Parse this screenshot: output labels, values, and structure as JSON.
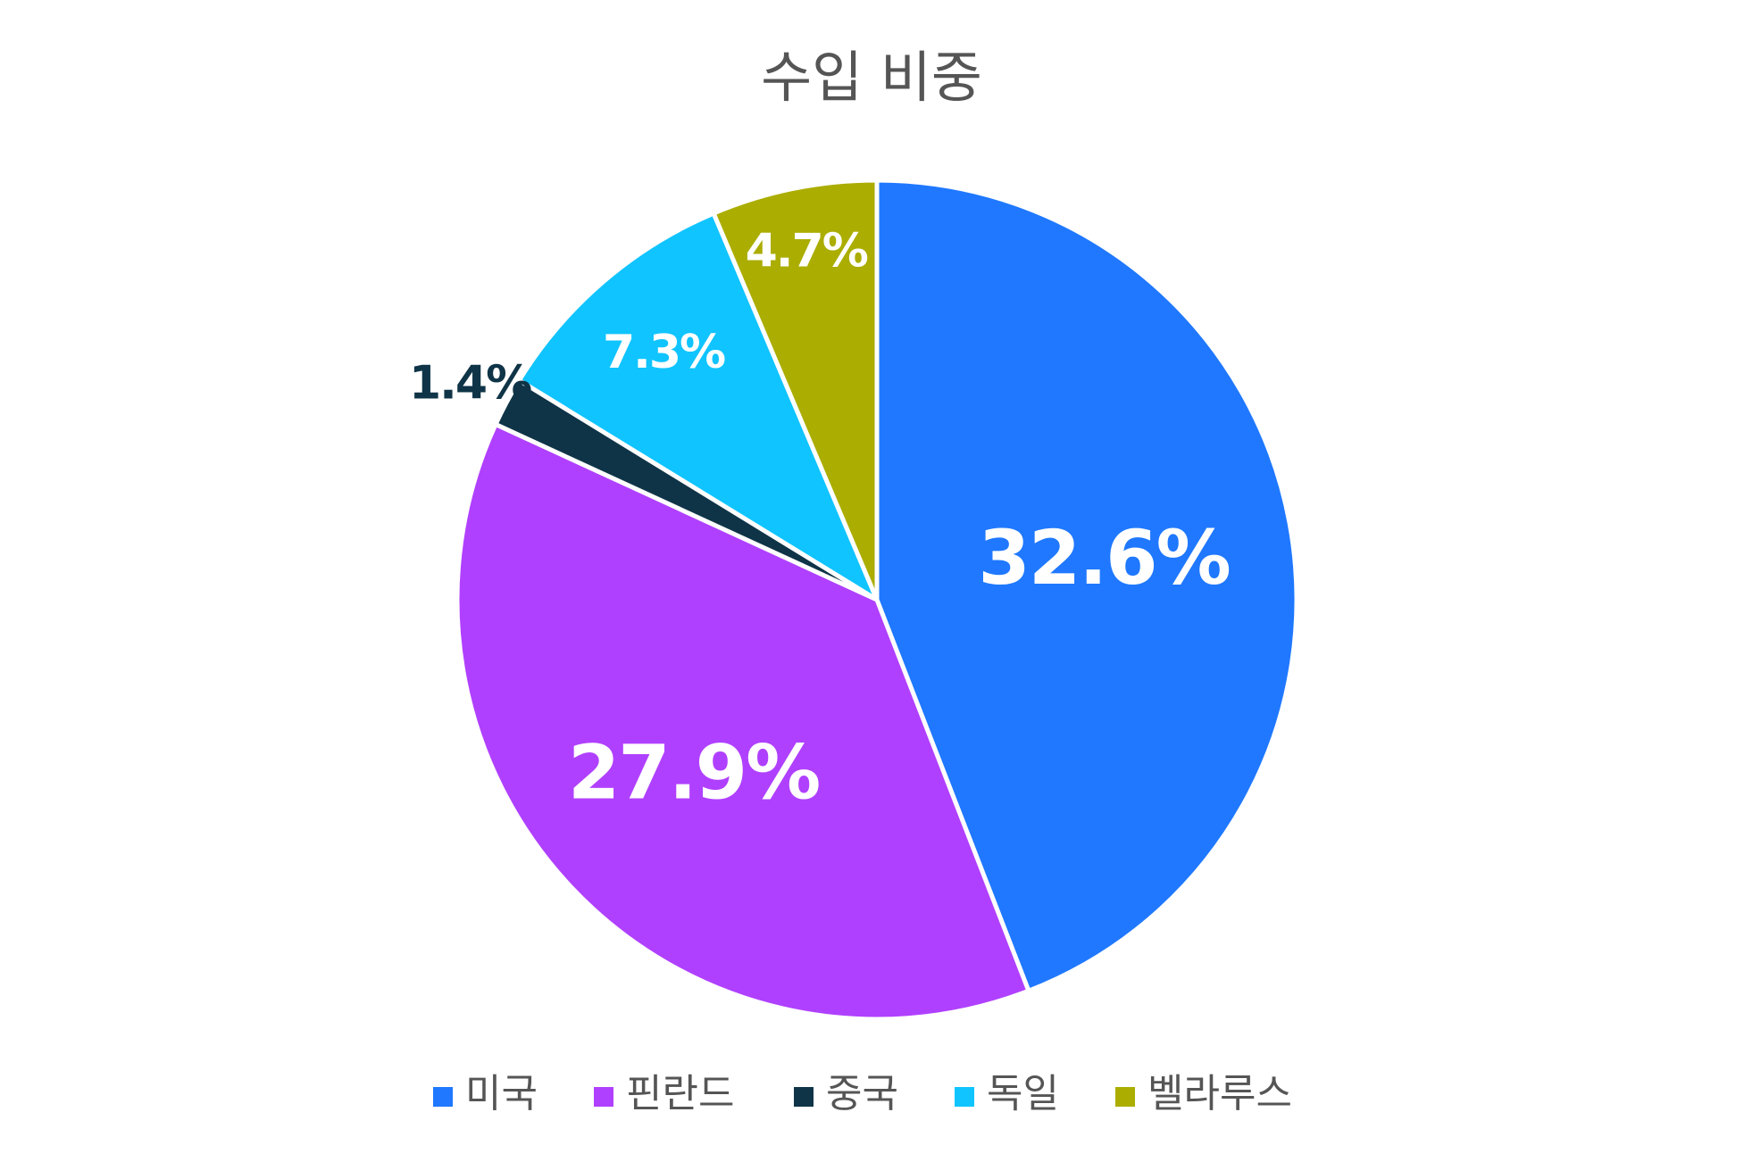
{
  "chart_data": {
    "type": "pie",
    "title": "수입 비중",
    "categories": [
      "미국",
      "핀란드",
      "중국",
      "독일",
      "벨라루스"
    ],
    "values": [
      32.6,
      27.9,
      1.4,
      7.3,
      4.7
    ],
    "labels": [
      "32.6%",
      "27.9%",
      "1.4%",
      "7.3%",
      "4.7%"
    ],
    "colors": [
      "#1f78ff",
      "#b040ff",
      "#0f3447",
      "#10c4ff",
      "#abad00"
    ],
    "start_angle": "12 o'clock",
    "direction": "clockwise",
    "legend_position": "bottom"
  }
}
